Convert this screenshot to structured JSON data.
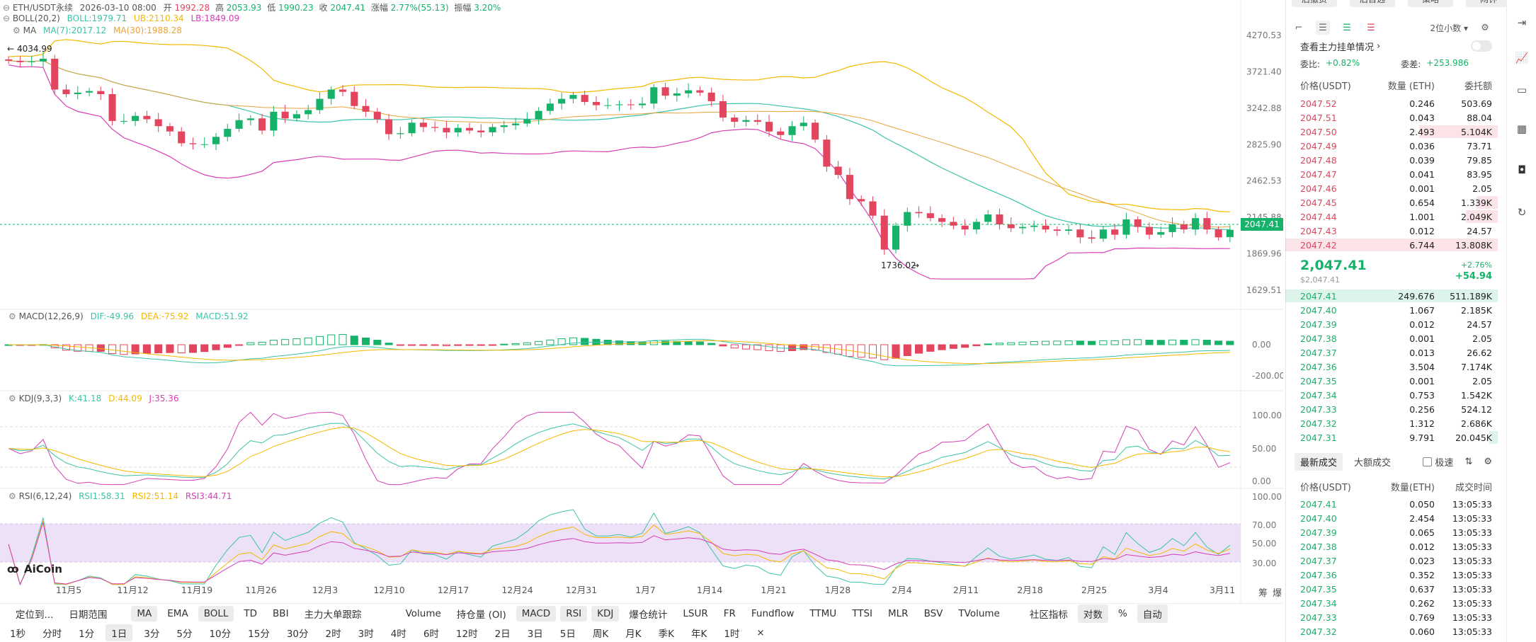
{
  "header": {
    "symbol": "ETH/USDT永续",
    "datetime": "2026-03-10 08:00",
    "open_label": "开",
    "open": "1992.28",
    "high_label": "高",
    "high": "2053.93",
    "low_label": "低",
    "low": "1990.23",
    "close_label": "收",
    "close": "2047.41",
    "change_label": "涨幅",
    "change": "2.77%(55.13)",
    "amp_label": "振幅",
    "amp": "3.20%"
  },
  "indicators": {
    "boll": {
      "label": "BOLL(20,2)",
      "boll": "BOLL:1979.71",
      "ub": "UB:2110.34",
      "lb": "LB:1849.09"
    },
    "ma": {
      "label": "MA",
      "ma7": "MA(7):2017.12",
      "ma30": "MA(30):1988.28"
    },
    "macd": {
      "label": "MACD(12,26,9)",
      "dif": "DIF:-49.96",
      "dea": "DEA:-75.92",
      "macd": "MACD:51.92"
    },
    "kdj": {
      "label": "KDJ(9,3,3)",
      "k": "K:41.18",
      "d": "D:44.09",
      "j": "J:35.36"
    },
    "rsi": {
      "label": "RSI(6,12,24)",
      "rsi1": "RSI1:58.31",
      "rsi2": "RSI2:51.14",
      "rsi3": "RSI3:44.71"
    }
  },
  "annotations": {
    "high_marker": "4034.99",
    "low_marker": "1736.02",
    "current_price": "2047.41",
    "logo": "AiCoin"
  },
  "colors": {
    "up": "#17b26a",
    "down": "#e2455d",
    "ma7": "#f5b800",
    "ma30": "#e8a33d",
    "boll_mid": "#3cc3a8",
    "boll_ub": "#f5b800",
    "boll_lb": "#d63fb5"
  },
  "chart_data": [
    {
      "type": "candlestick",
      "title": "ETH/USDT永续",
      "y_ticks": [
        "4270.53",
        "3721.40",
        "3242.88",
        "2825.90",
        "2462.53",
        "2145.88",
        "1869.96",
        "1629.51"
      ],
      "x_ticks": [
        "11月5",
        "11月12",
        "11月19",
        "11月26",
        "12月3",
        "12月10",
        "12月17",
        "12月24",
        "12月31",
        "1月7",
        "1月14",
        "1月21",
        "1月28",
        "2月4",
        "2月11",
        "2月18",
        "2月25",
        "3月4",
        "3月11"
      ],
      "close": [
        3880,
        3860,
        3870,
        3910,
        3480,
        3420,
        3440,
        3460,
        3420,
        3090,
        3090,
        3150,
        3110,
        3030,
        2970,
        2840,
        2830,
        2830,
        2910,
        3000,
        3100,
        3120,
        2980,
        3200,
        3120,
        3170,
        3220,
        3360,
        3480,
        3450,
        3270,
        3200,
        3110,
        2940,
        2950,
        3070,
        3020,
        3010,
        2960,
        3010,
        2980,
        2960,
        3020,
        3040,
        3060,
        3110,
        3210,
        3300,
        3360,
        3410,
        3320,
        3280,
        3280,
        3290,
        3280,
        3300,
        3510,
        3400,
        3430,
        3470,
        3440,
        3330,
        3130,
        3080,
        3100,
        3080,
        2970,
        2930,
        3030,
        3070,
        2880,
        2600,
        2520,
        2300,
        2280,
        2160,
        1900,
        2080,
        2190,
        2180,
        2140,
        2110,
        2080,
        2050,
        2110,
        2170,
        2090,
        2060,
        2070,
        2080,
        2050,
        2040,
        2050,
        1990,
        1980,
        2050,
        2010,
        2130,
        2070,
        2010,
        2030,
        2090,
        2050,
        2140,
        2050,
        1990,
        2047.41
      ],
      "open": [
        3900,
        3880,
        3860,
        3870,
        3910,
        3480,
        3420,
        3440,
        3460,
        3420,
        3090,
        3090,
        3150,
        3110,
        3030,
        2970,
        2840,
        2830,
        2830,
        2910,
        3000,
        3100,
        3120,
        2980,
        3200,
        3120,
        3170,
        3220,
        3360,
        3480,
        3450,
        3270,
        3200,
        3110,
        2940,
        2950,
        3070,
        3020,
        3010,
        2960,
        3010,
        2980,
        2960,
        3020,
        3040,
        3060,
        3110,
        3210,
        3300,
        3360,
        3410,
        3320,
        3280,
        3280,
        3290,
        3280,
        3300,
        3510,
        3400,
        3430,
        3470,
        3440,
        3330,
        3130,
        3080,
        3100,
        3080,
        2970,
        2930,
        3030,
        3070,
        2880,
        2600,
        2520,
        2300,
        2280,
        2160,
        1900,
        2080,
        2190,
        2180,
        2140,
        2110,
        2080,
        2050,
        2110,
        2170,
        2090,
        2060,
        2070,
        2080,
        2050,
        2040,
        2050,
        1990,
        1980,
        2050,
        2010,
        2130,
        2070,
        2010,
        2030,
        2090,
        2050,
        2140,
        2050,
        1992.28
      ]
    },
    {
      "type": "bar",
      "title": "MACD(12,26,9)",
      "y_ticks": [
        "0.00",
        "-200.00"
      ]
    },
    {
      "type": "line",
      "title": "KDJ(9,3,3)",
      "y_ticks": [
        "100.00",
        "50.00",
        "0.00"
      ]
    },
    {
      "type": "line",
      "title": "RSI(6,12,24)",
      "y_ticks": [
        "100.00",
        "70.00",
        "50.00",
        "30.00"
      ]
    }
  ],
  "axis_right_labels": {
    "extra": "筹",
    "extra2": "爆"
  },
  "orderbook": {
    "top_buttons": [
      "后撤货",
      "后目选",
      "策略",
      "闹钟"
    ],
    "decimals": "2位小数",
    "title": "查看主力挂单情况",
    "ratio_label": "委比:",
    "ratio": "+0.82%",
    "diff_label": "委差:",
    "diff": "+253.986",
    "col_price": "价格(USDT)",
    "col_qty": "数量 (ETH)",
    "col_total": "委托额",
    "asks": [
      {
        "p": "2047.52",
        "q": "0.246",
        "t": "503.69",
        "w": 0
      },
      {
        "p": "2047.51",
        "q": "0.043",
        "t": "88.04",
        "w": 0
      },
      {
        "p": "2047.50",
        "q": "2.493",
        "t": "5.104K",
        "w": 0.37
      },
      {
        "p": "2047.49",
        "q": "0.036",
        "t": "73.71",
        "w": 0
      },
      {
        "p": "2047.48",
        "q": "0.039",
        "t": "79.85",
        "w": 0
      },
      {
        "p": "2047.47",
        "q": "0.041",
        "t": "83.95",
        "w": 0
      },
      {
        "p": "2047.46",
        "q": "0.001",
        "t": "2.05",
        "w": 0
      },
      {
        "p": "2047.45",
        "q": "0.654",
        "t": "1.339K",
        "w": 0.1
      },
      {
        "p": "2047.44",
        "q": "1.001",
        "t": "2.049K",
        "w": 0.15
      },
      {
        "p": "2047.43",
        "q": "0.012",
        "t": "24.57",
        "w": 0
      },
      {
        "p": "2047.42",
        "q": "6.744",
        "t": "13.808K",
        "w": 1
      }
    ],
    "mid_price": "2,047.41",
    "mid_usd": "$2,047.41",
    "mid_pct": "+2.76%",
    "mid_chg": "+54.94",
    "bids": [
      {
        "p": "2047.41",
        "q": "249.676",
        "t": "511.189K",
        "w": 1
      },
      {
        "p": "2047.40",
        "q": "1.067",
        "t": "2.185K",
        "w": 0
      },
      {
        "p": "2047.39",
        "q": "0.012",
        "t": "24.57",
        "w": 0
      },
      {
        "p": "2047.38",
        "q": "0.001",
        "t": "2.05",
        "w": 0
      },
      {
        "p": "2047.37",
        "q": "0.013",
        "t": "26.62",
        "w": 0
      },
      {
        "p": "2047.36",
        "q": "3.504",
        "t": "7.174K",
        "w": 0
      },
      {
        "p": "2047.35",
        "q": "0.001",
        "t": "2.05",
        "w": 0
      },
      {
        "p": "2047.34",
        "q": "0.753",
        "t": "1.542K",
        "w": 0
      },
      {
        "p": "2047.33",
        "q": "0.256",
        "t": "524.12",
        "w": 0
      },
      {
        "p": "2047.32",
        "q": "1.312",
        "t": "2.686K",
        "w": 0
      },
      {
        "p": "2047.31",
        "q": "9.791",
        "t": "20.045K",
        "w": 0.04
      }
    ]
  },
  "trades": {
    "tab_latest": "最新成交",
    "tab_big": "大额成交",
    "fast_label": "极速",
    "col_price": "价格(USDT)",
    "col_qty": "数量(ETH)",
    "col_time": "成交时间",
    "rows": [
      {
        "p": "2047.41",
        "q": "0.050",
        "t": "13:05:33"
      },
      {
        "p": "2047.40",
        "q": "2.454",
        "t": "13:05:33"
      },
      {
        "p": "2047.39",
        "q": "0.065",
        "t": "13:05:33"
      },
      {
        "p": "2047.38",
        "q": "0.012",
        "t": "13:05:33"
      },
      {
        "p": "2047.37",
        "q": "0.023",
        "t": "13:05:33"
      },
      {
        "p": "2047.36",
        "q": "0.352",
        "t": "13:05:33"
      },
      {
        "p": "2047.35",
        "q": "0.637",
        "t": "13:05:33"
      },
      {
        "p": "2047.34",
        "q": "0.262",
        "t": "13:05:33"
      },
      {
        "p": "2047.33",
        "q": "0.769",
        "t": "13:05:33"
      },
      {
        "p": "2047.32",
        "q": "0.060",
        "t": "13:05:33"
      }
    ]
  },
  "toolbar": {
    "items": [
      {
        "label": "定位到...",
        "on": false
      },
      {
        "label": "日期范围",
        "on": false
      },
      {
        "label": "MA",
        "on": true
      },
      {
        "label": "EMA",
        "on": false
      },
      {
        "label": "BOLL",
        "on": true
      },
      {
        "label": "TD",
        "on": false
      },
      {
        "label": "BBI",
        "on": false
      },
      {
        "label": "主力大单跟踪",
        "on": false
      },
      {
        "label": "Volume",
        "on": false
      },
      {
        "label": "持仓量 (OI)",
        "on": false
      },
      {
        "label": "MACD",
        "on": true
      },
      {
        "label": "RSI",
        "on": true
      },
      {
        "label": "KDJ",
        "on": true
      },
      {
        "label": "爆仓统计",
        "on": false
      },
      {
        "label": "LSUR",
        "on": false
      },
      {
        "label": "FR",
        "on": false
      },
      {
        "label": "Fundflow",
        "on": false
      },
      {
        "label": "TTMU",
        "on": false
      },
      {
        "label": "TTSI",
        "on": false
      },
      {
        "label": "MLR",
        "on": false
      },
      {
        "label": "BSV",
        "on": false
      },
      {
        "label": "TVolume",
        "on": false
      },
      {
        "label": "社区指标",
        "on": false
      },
      {
        "label": "对数",
        "on": true
      },
      {
        "label": "%",
        "on": false
      },
      {
        "label": "自动",
        "on": true
      }
    ]
  },
  "periods": [
    {
      "label": "1秒",
      "on": false
    },
    {
      "label": "分时",
      "on": false
    },
    {
      "label": "1分",
      "on": false
    },
    {
      "label": "1日",
      "on": true
    },
    {
      "label": "3分",
      "on": false
    },
    {
      "label": "5分",
      "on": false
    },
    {
      "label": "10分",
      "on": false
    },
    {
      "label": "15分",
      "on": false
    },
    {
      "label": "30分",
      "on": false
    },
    {
      "label": "2时",
      "on": false
    },
    {
      "label": "3时",
      "on": false
    },
    {
      "label": "4时",
      "on": false
    },
    {
      "label": "6时",
      "on": false
    },
    {
      "label": "12时",
      "on": false
    },
    {
      "label": "2日",
      "on": false
    },
    {
      "label": "3日",
      "on": false
    },
    {
      "label": "5日",
      "on": false
    },
    {
      "label": "周K",
      "on": false
    },
    {
      "label": "月K",
      "on": false
    },
    {
      "label": "季K",
      "on": false
    },
    {
      "label": "年K",
      "on": false
    },
    {
      "label": "1时",
      "on": false
    },
    {
      "label": "×",
      "on": false
    }
  ]
}
